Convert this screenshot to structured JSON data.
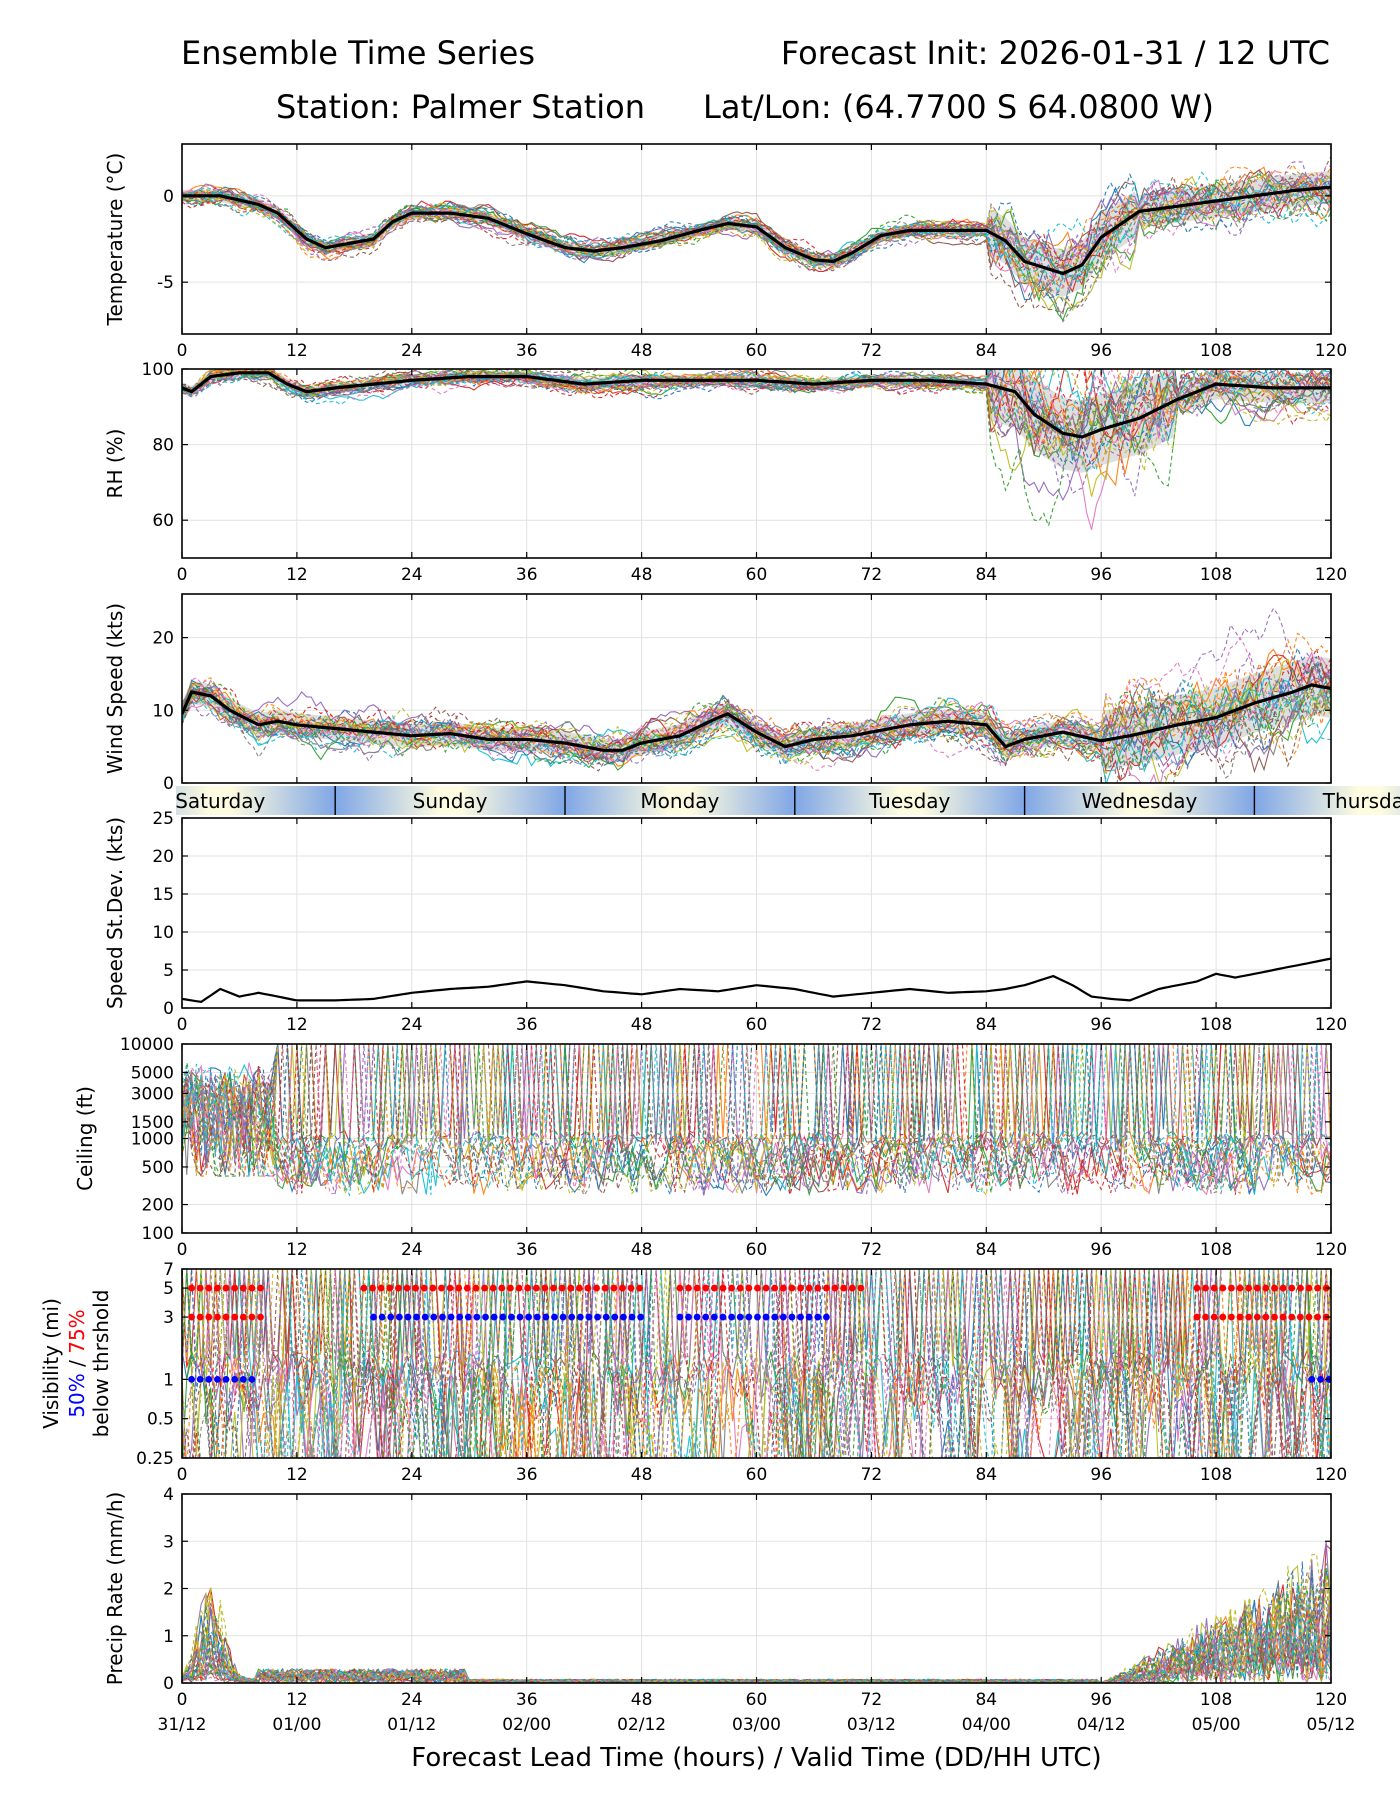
{
  "header": {
    "left_title": "Ensemble Time Series",
    "right_title": "Forecast Init: 2026-01-31 / 12 UTC",
    "station": "Station: Palmer Station",
    "latlon": "Lat/Lon: (64.7700 S 64.0800 W)"
  },
  "colors": {
    "members": [
      "#1f77b4",
      "#ff7f0e",
      "#2ca02c",
      "#d62728",
      "#9467bd",
      "#8c564b",
      "#e377c2",
      "#7f7f7f",
      "#bcbd22",
      "#17becf"
    ],
    "mean": "#000000",
    "spread": "#d0d0d0",
    "vis50": "#0000ff",
    "vis75": "#ff0000"
  },
  "xaxis": {
    "label": "Forecast Lead Time (hours) / Valid Time (DD/HH UTC)",
    "lim": [
      0,
      120
    ],
    "ticks": [
      0,
      12,
      24,
      36,
      48,
      60,
      72,
      84,
      96,
      108,
      120
    ],
    "tick_labels": [
      "0",
      "12",
      "24",
      "36",
      "48",
      "60",
      "72",
      "84",
      "96",
      "108",
      "120"
    ],
    "valid_labels": [
      "31/12",
      "01/00",
      "01/12",
      "02/00",
      "02/12",
      "03/00",
      "03/12",
      "04/00",
      "04/12",
      "05/00",
      "05/12"
    ]
  },
  "days": {
    "names": [
      "Saturday",
      "Sunday",
      "Monday",
      "Tuesday",
      "Wednesday",
      "Thursday"
    ],
    "boundaries_hours": [
      16,
      40,
      64,
      88,
      112
    ]
  },
  "chart_data": [
    {
      "id": "temperature",
      "type": "line",
      "ylabel": "Temperature (°C)",
      "ylim": [
        -8,
        3
      ],
      "yticks": [
        0,
        -5
      ],
      "ytick_labels": [
        "0",
        "-5"
      ],
      "members": 30,
      "series": [
        {
          "name": "ensemble mean",
          "x": [
            0,
            4,
            8,
            10,
            13,
            15,
            17,
            20,
            22,
            24,
            28,
            32,
            36,
            40,
            43,
            46,
            50,
            54,
            57,
            60,
            63,
            66,
            68,
            70,
            73,
            76,
            80,
            84,
            86,
            88,
            92,
            94,
            96,
            100,
            104,
            108,
            112,
            116,
            120
          ],
          "values": [
            0,
            0,
            -0.5,
            -1,
            -2.5,
            -3,
            -2.8,
            -2.5,
            -1.5,
            -1,
            -1,
            -1.3,
            -2.2,
            -3,
            -3.2,
            -3,
            -2.6,
            -2,
            -1.6,
            -1.8,
            -3,
            -3.7,
            -3.8,
            -3.3,
            -2.3,
            -2,
            -2,
            -2,
            -2.6,
            -3.8,
            -4.5,
            -4,
            -2.4,
            -0.9,
            -0.6,
            -0.3,
            0,
            0.3,
            0.5
          ]
        }
      ]
    },
    {
      "id": "rh",
      "type": "line",
      "ylabel": "RH (%)",
      "ylim": [
        50,
        100
      ],
      "yticks": [
        100,
        80,
        60
      ],
      "ytick_labels": [
        "100",
        "80",
        "60"
      ],
      "members": 30,
      "series": [
        {
          "name": "ensemble mean",
          "x": [
            0,
            1,
            3,
            6,
            9,
            11,
            13,
            16,
            20,
            24,
            30,
            36,
            42,
            48,
            54,
            60,
            66,
            72,
            78,
            84,
            87,
            89,
            92,
            94,
            96,
            100,
            104,
            108,
            114,
            120
          ],
          "values": [
            95,
            94,
            98,
            99,
            99,
            96,
            94,
            95,
            96,
            97,
            98,
            98,
            96,
            97,
            97,
            97,
            96,
            97,
            97,
            96,
            94,
            88,
            83,
            82,
            84,
            87,
            92,
            96,
            95,
            95
          ]
        }
      ]
    },
    {
      "id": "wind",
      "type": "line",
      "ylabel": "Wind Speed (kts)",
      "ylim": [
        0,
        26
      ],
      "yticks": [
        20,
        10,
        0
      ],
      "ytick_labels": [
        "20",
        "10",
        "0"
      ],
      "members": 30,
      "series": [
        {
          "name": "ensemble mean",
          "x": [
            0,
            1,
            3,
            5,
            8,
            10,
            12,
            16,
            20,
            24,
            28,
            32,
            36,
            40,
            44,
            46,
            48,
            52,
            56,
            57,
            60,
            63,
            66,
            70,
            74,
            76,
            80,
            84,
            86,
            88,
            92,
            96,
            99,
            104,
            108,
            112,
            116,
            118,
            120
          ],
          "values": [
            9.5,
            12.5,
            12,
            10,
            8,
            8.5,
            8,
            7.5,
            7,
            6.5,
            6.8,
            6,
            6,
            5.5,
            4.5,
            4.5,
            5.5,
            6.5,
            9,
            9.5,
            7,
            5,
            6,
            6.5,
            7.5,
            8,
            8.5,
            8,
            5,
            6,
            7,
            5.8,
            6.5,
            8,
            9,
            11,
            12.5,
            13.5,
            13
          ]
        }
      ]
    },
    {
      "id": "speed_stdev",
      "type": "line",
      "ylabel": "Speed St.Dev. (kts)",
      "ylim": [
        0,
        25
      ],
      "yticks": [
        25,
        20,
        15,
        10,
        5,
        0
      ],
      "ytick_labels": [
        "25",
        "20",
        "15",
        "10",
        "5",
        "0"
      ],
      "members": 0,
      "series": [
        {
          "name": "ensemble std dev",
          "x": [
            0,
            2,
            4,
            6,
            8,
            10,
            12,
            16,
            20,
            24,
            28,
            32,
            36,
            40,
            44,
            48,
            52,
            56,
            60,
            64,
            68,
            72,
            76,
            80,
            84,
            86,
            88,
            91,
            93,
            95,
            97,
            99,
            102,
            106,
            108,
            110,
            114,
            120
          ],
          "values": [
            1.2,
            0.8,
            2.5,
            1.5,
            2,
            1.5,
            1,
            1,
            1.2,
            2,
            2.5,
            2.8,
            3.5,
            3,
            2.2,
            1.8,
            2.5,
            2.2,
            3,
            2.5,
            1.5,
            2,
            2.5,
            2,
            2.2,
            2.5,
            3,
            4.2,
            3,
            1.5,
            1.2,
            1,
            2.5,
            3.5,
            4.5,
            4,
            5,
            6.5
          ]
        }
      ]
    },
    {
      "id": "ceiling",
      "type": "line",
      "scale": "log",
      "ylabel": "Ceiling (ft)",
      "ylim": [
        100,
        10000
      ],
      "yticks": [
        10000,
        5000,
        3000,
        1500,
        1000,
        500,
        200,
        100
      ],
      "ytick_labels": [
        "10000",
        "5000",
        "3000",
        "1500",
        "1000",
        "500",
        "200",
        "100"
      ],
      "members": 30
    },
    {
      "id": "visibility",
      "type": "line",
      "scale": "log",
      "ylabel": "Visibility (mi)",
      "ylabel_pct_50": "50%",
      "ylabel_pct_sep": " / ",
      "ylabel_pct_75": "75%",
      "ylabel_below": "below thrshold",
      "ylim": [
        0.25,
        7
      ],
      "yticks": [
        7,
        5,
        3,
        1,
        0.5,
        0.25
      ],
      "ytick_labels": [
        "7",
        "5",
        "3",
        "1",
        "0.5",
        "0.25"
      ],
      "members": 30,
      "thresholds": [
        {
          "level": 5,
          "segments": [
            [
              1,
              9,
              "vis75"
            ],
            [
              19,
              48,
              "vis75"
            ],
            [
              52,
              71,
              "vis75"
            ],
            [
              106,
              120,
              "vis75"
            ]
          ]
        },
        {
          "level": 3,
          "segments": [
            [
              1,
              9,
              "vis75"
            ],
            [
              20,
              48,
              "vis50"
            ],
            [
              52,
              68,
              "vis50"
            ],
            [
              106,
              120,
              "vis75"
            ]
          ]
        },
        {
          "level": 1,
          "segments": [
            [
              1,
              8,
              "vis50"
            ],
            [
              118,
              120,
              "vis50"
            ]
          ]
        }
      ]
    },
    {
      "id": "precip",
      "type": "line",
      "ylabel": "Precip Rate (mm/h)",
      "ylim": [
        0,
        4
      ],
      "yticks": [
        4,
        3,
        2,
        1,
        0
      ],
      "ytick_labels": [
        "4",
        "3",
        "2",
        "1",
        "0"
      ],
      "members": 30
    }
  ]
}
